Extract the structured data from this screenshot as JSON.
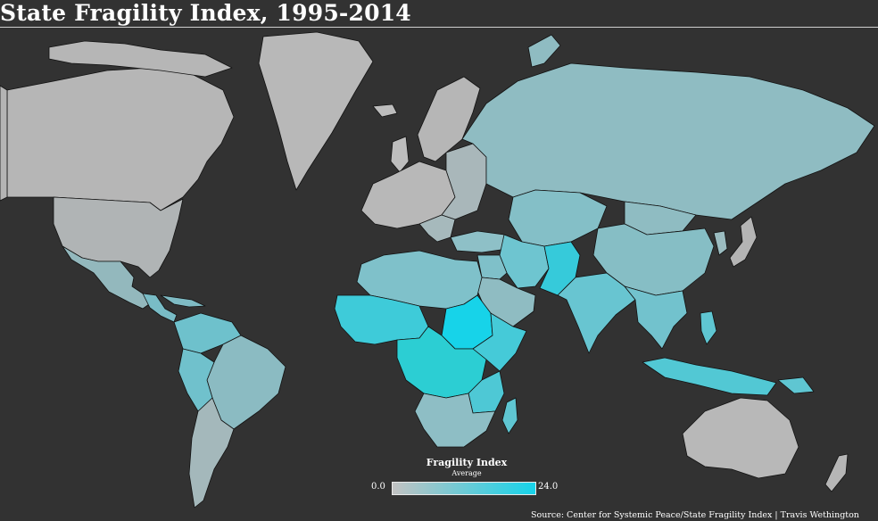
{
  "title": "State Fragility Index, 1995-2014",
  "legend": {
    "title": "Fragility Index",
    "subtitle": "Average",
    "min_label": "0.0",
    "max_label": "24.0",
    "min_color": "#c2c2c2",
    "max_color": "#16d3ea"
  },
  "source": "Source: Center for Systemic Peace/State Fragility Index  |  Travis Wethington",
  "colors": {
    "background": "#323232",
    "ocean": "#323232",
    "border": "#111111"
  }
}
